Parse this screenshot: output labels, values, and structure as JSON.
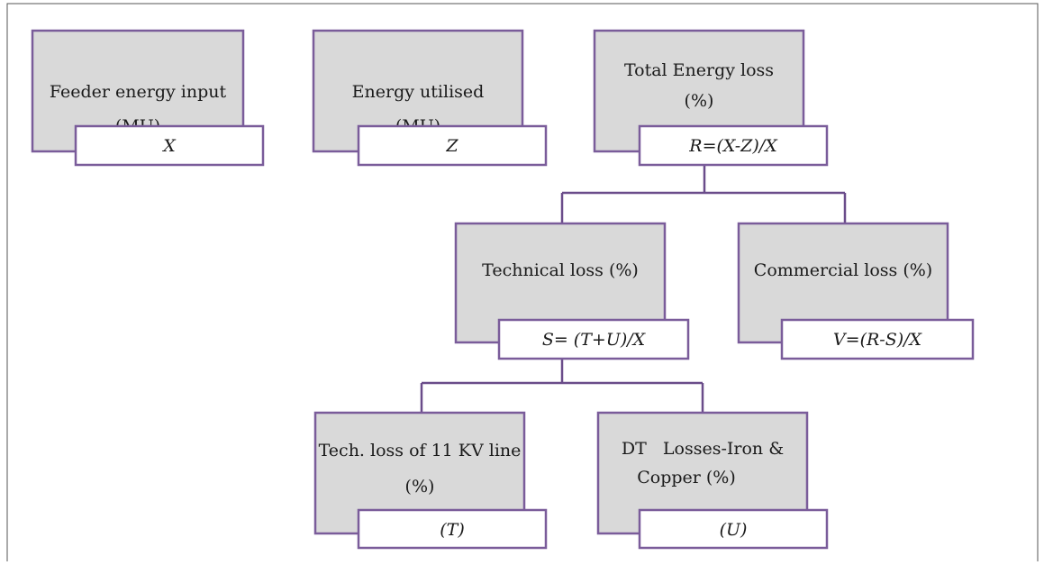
{
  "nodes": [
    {
      "lines": [
        "Feeder energy input",
        "(MU)"
      ],
      "value": "X"
    },
    {
      "lines": [
        "Energy utilised",
        "(MU)"
      ],
      "value": "Z"
    },
    {
      "lines": [
        "Total Energy loss",
        "(%)"
      ],
      "value": "R=(X-Z)/X"
    },
    {
      "lines": [
        "Technical loss (%)"
      ],
      "value": "S= (T+U)/X"
    },
    {
      "lines": [
        "Commercial loss (%)"
      ],
      "value": "V=(R-S)/X"
    },
    {
      "lines": [
        "Tech. loss of 11 KV line",
        "(%)"
      ],
      "value": "(T)"
    },
    {
      "lines": [
        "DT   Losses-Iron &",
        "Copper (%)"
      ],
      "value": "(U)"
    }
  ]
}
